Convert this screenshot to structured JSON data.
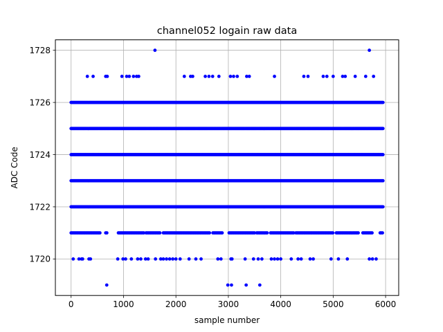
{
  "chart_data": {
    "type": "scatter",
    "title": "channel052 logain raw data",
    "xlabel": "sample number",
    "ylabel": "ADC Code",
    "xlim": [
      -300,
      6250
    ],
    "ylim": [
      1718.6,
      1728.4
    ],
    "xticks": [
      0,
      1000,
      2000,
      3000,
      4000,
      5000,
      6000
    ],
    "yticks": [
      1720,
      1722,
      1724,
      1726,
      1728
    ],
    "grid": true,
    "marker_color": "#0000ff",
    "n_samples": 5952,
    "series": [
      {
        "points": [
          [
            1600,
            1728
          ],
          [
            5690,
            1728
          ],
          [
            310,
            1727
          ],
          [
            420,
            1727
          ],
          [
            660,
            1727
          ],
          [
            690,
            1727
          ],
          [
            970,
            1727
          ],
          [
            1060,
            1727
          ],
          [
            1110,
            1727
          ],
          [
            1190,
            1727
          ],
          [
            1250,
            1727
          ],
          [
            1290,
            1727
          ],
          [
            2160,
            1727
          ],
          [
            2280,
            1727
          ],
          [
            2320,
            1727
          ],
          [
            2560,
            1727
          ],
          [
            2630,
            1727
          ],
          [
            2700,
            1727
          ],
          [
            2820,
            1727
          ],
          [
            3040,
            1727
          ],
          [
            3100,
            1727
          ],
          [
            3170,
            1727
          ],
          [
            3350,
            1727
          ],
          [
            3400,
            1727
          ],
          [
            3880,
            1727
          ],
          [
            4440,
            1727
          ],
          [
            4520,
            1727
          ],
          [
            4810,
            1727
          ],
          [
            4880,
            1727
          ],
          [
            5000,
            1727
          ],
          [
            5180,
            1727
          ],
          [
            5230,
            1727
          ],
          [
            5420,
            1727
          ],
          [
            5620,
            1727
          ],
          [
            5770,
            1727
          ],
          [
            40,
            1720
          ],
          [
            150,
            1720
          ],
          [
            200,
            1720
          ],
          [
            220,
            1720
          ],
          [
            340,
            1720
          ],
          [
            370,
            1720
          ],
          [
            890,
            1720
          ],
          [
            990,
            1720
          ],
          [
            1040,
            1720
          ],
          [
            1150,
            1720
          ],
          [
            1270,
            1720
          ],
          [
            1330,
            1720
          ],
          [
            1420,
            1720
          ],
          [
            1470,
            1720
          ],
          [
            1610,
            1720
          ],
          [
            1710,
            1720
          ],
          [
            1760,
            1720
          ],
          [
            1820,
            1720
          ],
          [
            1880,
            1720
          ],
          [
            1940,
            1720
          ],
          [
            2000,
            1720
          ],
          [
            2080,
            1720
          ],
          [
            2250,
            1720
          ],
          [
            2380,
            1720
          ],
          [
            2480,
            1720
          ],
          [
            2800,
            1720
          ],
          [
            2860,
            1720
          ],
          [
            3050,
            1720
          ],
          [
            3070,
            1720
          ],
          [
            3320,
            1720
          ],
          [
            3480,
            1720
          ],
          [
            3570,
            1720
          ],
          [
            3640,
            1720
          ],
          [
            3820,
            1720
          ],
          [
            3880,
            1720
          ],
          [
            3940,
            1720
          ],
          [
            4000,
            1720
          ],
          [
            4200,
            1720
          ],
          [
            4330,
            1720
          ],
          [
            4390,
            1720
          ],
          [
            4560,
            1720
          ],
          [
            4620,
            1720
          ],
          [
            4960,
            1720
          ],
          [
            5100,
            1720
          ],
          [
            5270,
            1720
          ],
          [
            5690,
            1720
          ],
          [
            5750,
            1720
          ],
          [
            5820,
            1720
          ],
          [
            680,
            1719
          ],
          [
            2990,
            1719
          ],
          [
            3060,
            1719
          ],
          [
            3340,
            1719
          ],
          [
            3600,
            1719
          ]
        ]
      }
    ]
  }
}
